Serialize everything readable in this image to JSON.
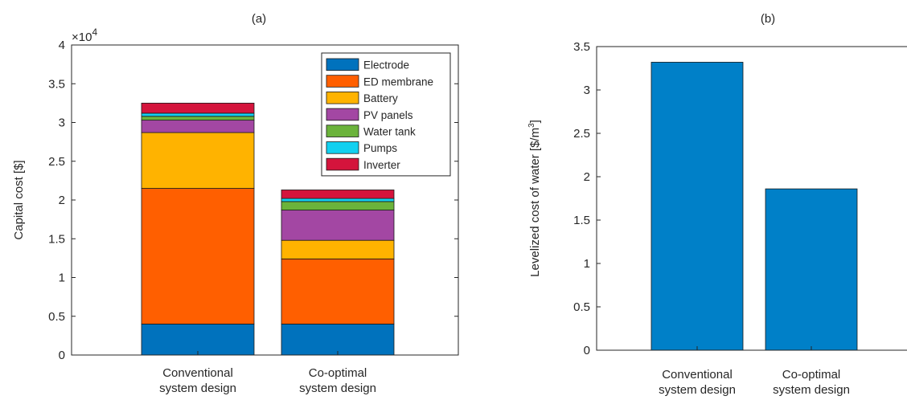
{
  "colors": {
    "electrode": "#0072BD",
    "ed_membrane": "#FF5F00",
    "battery": "#FFB300",
    "pv_panels": "#A347A3",
    "water_tank": "#6BB33B",
    "pumps": "#12D0F0",
    "inverter": "#D4143C"
  },
  "chart_data": [
    {
      "type": "bar",
      "stacked": true,
      "title": "(a)",
      "ylabel": "Capital cost [$]",
      "exponent_label": "×10",
      "exponent_power": "4",
      "categories": [
        [
          "Conventional",
          "system design"
        ],
        [
          "Co-optimal",
          "system design"
        ]
      ],
      "ylim": [
        0,
        4
      ],
      "yticks": [
        "0",
        "0.5",
        "1",
        "1.5",
        "2",
        "2.5",
        "3",
        "3.5",
        "4"
      ],
      "series": [
        {
          "name": "Electrode",
          "color": "#0072BD",
          "values": [
            0.4,
            0.4
          ]
        },
        {
          "name": "ED membrane",
          "color": "#FF5F00",
          "values": [
            1.75,
            0.84
          ]
        },
        {
          "name": "Battery",
          "color": "#FFB300",
          "values": [
            0.72,
            0.24
          ]
        },
        {
          "name": "PV panels",
          "color": "#A347A3",
          "values": [
            0.16,
            0.39
          ]
        },
        {
          "name": "Water tank",
          "color": "#6BB33B",
          "values": [
            0.05,
            0.11
          ]
        },
        {
          "name": "Pumps",
          "color": "#12D0F0",
          "values": [
            0.04,
            0.04
          ]
        },
        {
          "name": "Inverter",
          "color": "#D4143C",
          "values": [
            0.13,
            0.11
          ]
        }
      ],
      "legend_position": "top-right",
      "grid": false
    },
    {
      "type": "bar",
      "title": "(b)",
      "ylabel": "Levelized cost of water [$/m",
      "ylabel_sup": "3",
      "ylabel_end": "]",
      "categories": [
        [
          "Conventional",
          "system design"
        ],
        [
          "Co-optimal",
          "system design"
        ]
      ],
      "values": [
        3.32,
        1.86
      ],
      "color": "#0080C8",
      "ylim": [
        0,
        3.5
      ],
      "yticks": [
        "0",
        "0.5",
        "1",
        "1.5",
        "2",
        "2.5",
        "3",
        "3.5"
      ],
      "grid": false
    }
  ]
}
